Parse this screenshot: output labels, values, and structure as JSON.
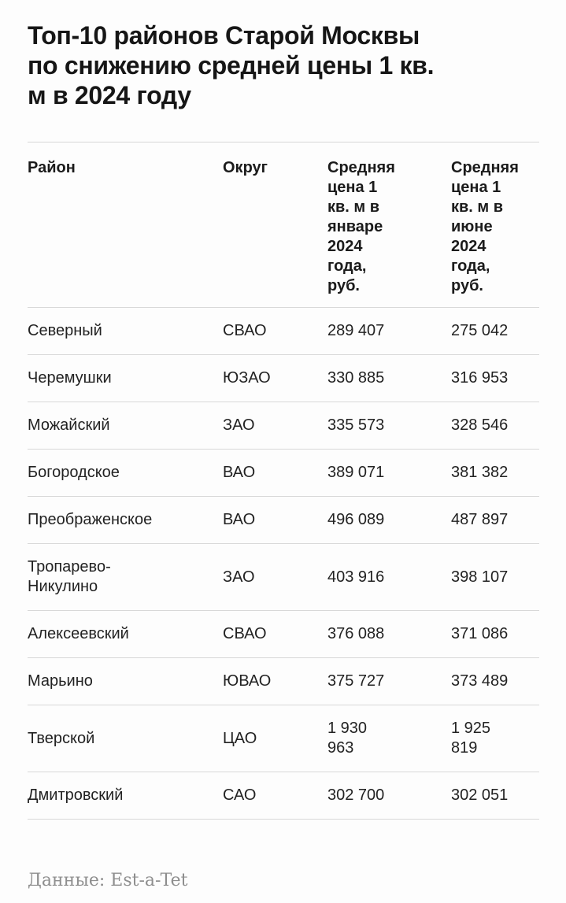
{
  "page": {
    "title": "Топ-10 районов Старой Москвы\nпо снижению средней цены 1 кв.\nм в 2024 году",
    "source_label": "Данные: Est-a-Tet"
  },
  "colors": {
    "background": "#fdfdfd",
    "title_text": "#161616",
    "body_text": "#222222",
    "divider": "#d8d8d8",
    "source_text": "#8e8e8e"
  },
  "table": {
    "columns": [
      {
        "label": "Район"
      },
      {
        "label": "Округ"
      },
      {
        "label": "Средняя\nцена 1\nкв. м в\nянваре\n2024\nгода,\nруб."
      },
      {
        "label": "Средняя\nцена 1\nкв. м в\nиюне\n2024\nгода,\nруб."
      }
    ],
    "rows": [
      {
        "district": "Северный",
        "okrug": "СВАО",
        "jan": "289 407",
        "jun": "275 042"
      },
      {
        "district": "Черемушки",
        "okrug": "ЮЗАО",
        "jan": "330 885",
        "jun": "316 953"
      },
      {
        "district": "Можайский",
        "okrug": "ЗАО",
        "jan": "335 573",
        "jun": "328 546"
      },
      {
        "district": "Богородское",
        "okrug": "ВАО",
        "jan": "389 071",
        "jun": "381 382"
      },
      {
        "district": "Преображенское",
        "okrug": "ВАО",
        "jan": "496 089",
        "jun": "487 897"
      },
      {
        "district": "Тропарево-\nНикулино",
        "okrug": "ЗАО",
        "jan": "403 916",
        "jun": "398 107"
      },
      {
        "district": "Алексеевский",
        "okrug": "СВАО",
        "jan": "376 088",
        "jun": "371 086"
      },
      {
        "district": "Марьино",
        "okrug": "ЮВАО",
        "jan": "375 727",
        "jun": "373 489"
      },
      {
        "district": "Тверской",
        "okrug": "ЦАО",
        "jan": "1 930\n963",
        "jun": "1 925\n819"
      },
      {
        "district": "Дмитровский",
        "okrug": "САО",
        "jan": "302 700",
        "jun": "302 051"
      }
    ]
  },
  "chart_data": {
    "type": "table",
    "title": "Топ-10 районов Старой Москвы по снижению средней цены 1 кв. м в 2024 году",
    "columns": [
      "Район",
      "Округ",
      "Средняя цена 1 кв. м в январе 2024 года, руб.",
      "Средняя цена 1 кв. м в июне 2024 года, руб."
    ],
    "rows": [
      [
        "Северный",
        "СВАО",
        289407,
        275042
      ],
      [
        "Черемушки",
        "ЮЗАО",
        330885,
        316953
      ],
      [
        "Можайский",
        "ЗАО",
        335573,
        328546
      ],
      [
        "Богородское",
        "ВАО",
        389071,
        381382
      ],
      [
        "Преображенское",
        "ВАО",
        496089,
        487897
      ],
      [
        "Тропарево-Никулино",
        "ЗАО",
        403916,
        398107
      ],
      [
        "Алексеевский",
        "СВАО",
        376088,
        371086
      ],
      [
        "Марьино",
        "ЮВАО",
        375727,
        373489
      ],
      [
        "Тверской",
        "ЦАО",
        1930963,
        1925819
      ],
      [
        "Дмитровский",
        "САО",
        302700,
        302051
      ]
    ],
    "source": "Est-a-Tet"
  }
}
